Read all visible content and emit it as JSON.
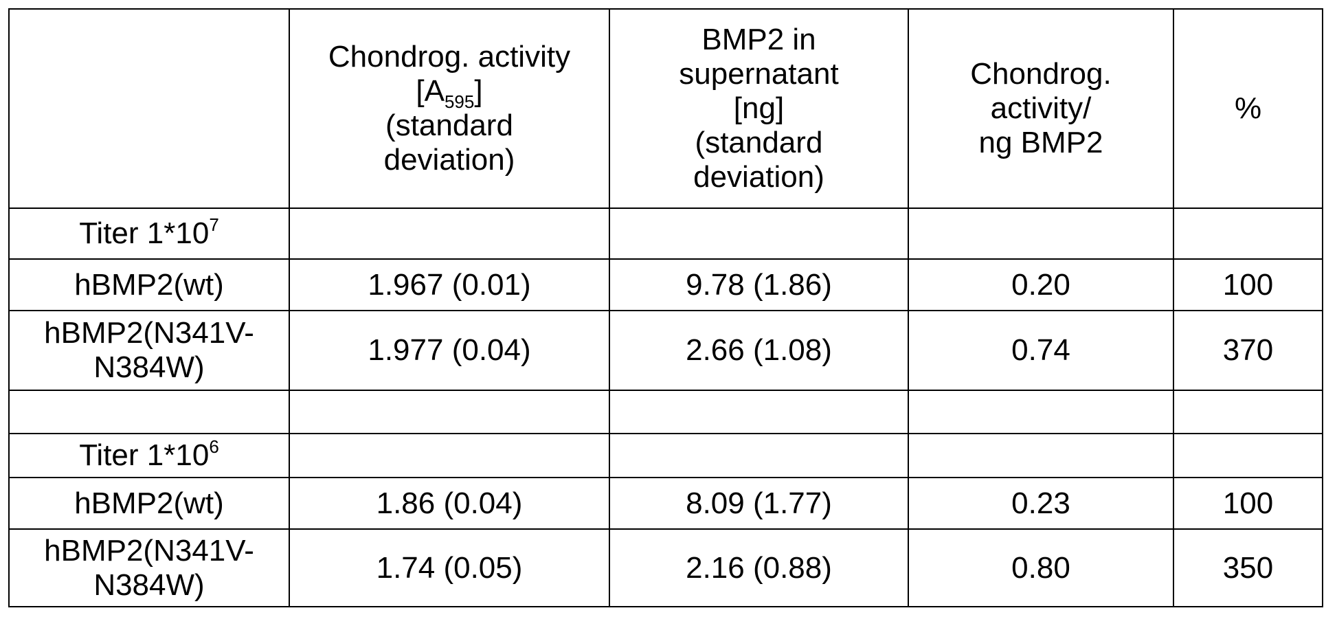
{
  "table": {
    "headers": [
      "",
      {
        "line1": "Chondrog. activity",
        "line2_prefix": "[A",
        "line2_sub": "595",
        "line2_suffix": "]",
        "line3": "(standard",
        "line4": "deviation)"
      },
      "BMP2 in\nsupernatant\n[ng]\n(standard\ndeviation)",
      "Chondrog.\nactivity/\nng BMP2",
      "%"
    ],
    "groups": [
      {
        "titer_prefix": "Titer 1*10",
        "titer_exp": "7",
        "rows": [
          {
            "label": "hBMP2(wt)",
            "activity": "1.967 (0.01)",
            "bmp2": "9.78 (1.86)",
            "ratio": "0.20",
            "percent": "100"
          },
          {
            "label": "hBMP2(N341V-\nN384W)",
            "activity": "1.977 (0.04)",
            "bmp2": "2.66 (1.08)",
            "ratio": "0.74",
            "percent": "370"
          }
        ]
      },
      {
        "titer_prefix": "Titer 1*10",
        "titer_exp": "6",
        "rows": [
          {
            "label": "hBMP2(wt)",
            "activity": "1.86 (0.04)",
            "bmp2": "8.09 (1.77)",
            "ratio": "0.23",
            "percent": "100"
          },
          {
            "label": "hBMP2(N341V-\nN384W)",
            "activity": "1.74 (0.05)",
            "bmp2": "2.16 (0.88)",
            "ratio": "0.80",
            "percent": "350"
          }
        ]
      }
    ]
  }
}
